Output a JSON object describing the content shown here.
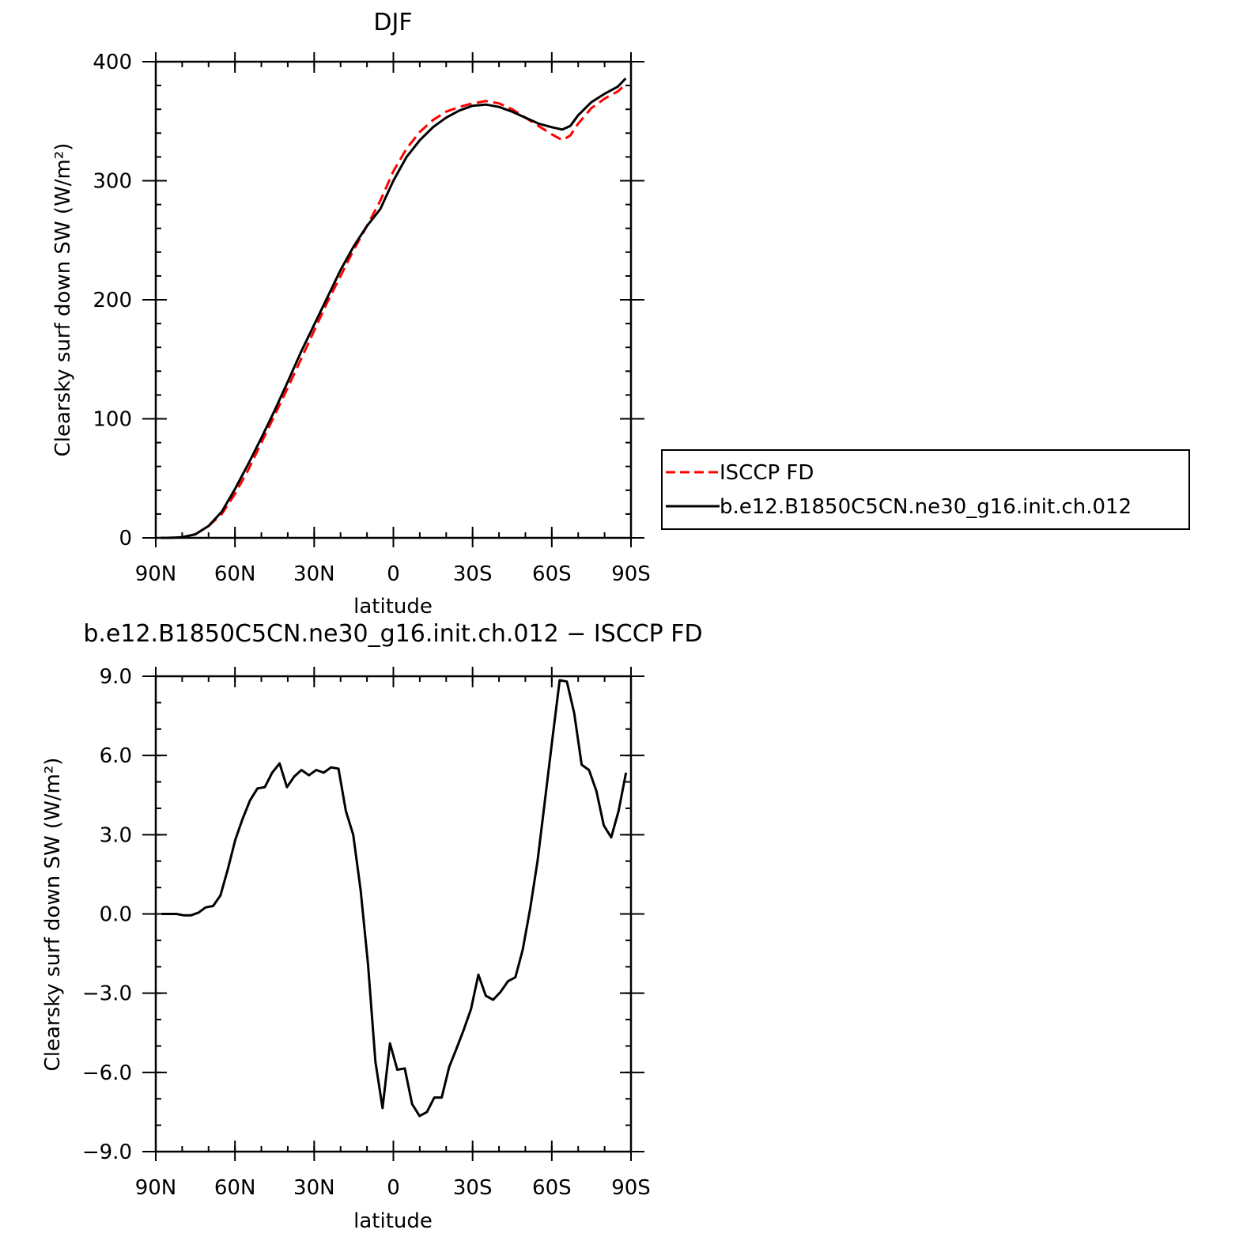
{
  "chart_data": [
    {
      "type": "line",
      "title": "DJF",
      "xlabel": "latitude",
      "ylabel": "Clearsky surf down SW (W/m²)",
      "xlim": [
        90,
        -90
      ],
      "ylim": [
        0,
        400
      ],
      "x_ticks": [
        90,
        60,
        30,
        0,
        -30,
        -60,
        -90
      ],
      "x_tick_labels": [
        "90N",
        "60N",
        "30N",
        "0",
        "30S",
        "60S",
        "90S"
      ],
      "y_ticks": [
        0,
        100,
        200,
        300,
        400
      ],
      "y_tick_labels": [
        "0",
        "100",
        "200",
        "300",
        "400"
      ],
      "legend_position": "right",
      "series": [
        {
          "name": "ISCCP FD",
          "color": "#ff0000",
          "dash": "dashed",
          "x": [
            88,
            85,
            80,
            75,
            70,
            65,
            60,
            55,
            50,
            45,
            40,
            35,
            30,
            25,
            20,
            15,
            10,
            5,
            0,
            -5,
            -10,
            -15,
            -20,
            -25,
            -30,
            -35,
            -40,
            -45,
            -50,
            -55,
            -60,
            -64,
            -67,
            -70,
            -75,
            -80,
            -85,
            -88
          ],
          "y": [
            0,
            0,
            0.5,
            3,
            10,
            20,
            37,
            57,
            80,
            103,
            126,
            150,
            174,
            198,
            220,
            242,
            262,
            283,
            308,
            327,
            341,
            351,
            358,
            362,
            365,
            367,
            365,
            360,
            353,
            346,
            339,
            334,
            338,
            348,
            361,
            369,
            375,
            381
          ]
        },
        {
          "name": "b.e12.B1850C5CN.ne30_g16.init.ch.012",
          "color": "#000000",
          "dash": "solid",
          "x": [
            88,
            85,
            80,
            75,
            70,
            65,
            60,
            55,
            50,
            45,
            40,
            35,
            30,
            25,
            20,
            15,
            10,
            5,
            0,
            -5,
            -10,
            -15,
            -20,
            -25,
            -30,
            -35,
            -40,
            -45,
            -50,
            -55,
            -60,
            -64,
            -67,
            -70,
            -75,
            -80,
            -85,
            -88
          ],
          "y": [
            0,
            0,
            0.5,
            3,
            10,
            22,
            41,
            62,
            84,
            107,
            131,
            156,
            179,
            202,
            225,
            245,
            262,
            276,
            300,
            320,
            334,
            345,
            353,
            359,
            363,
            364,
            362,
            358,
            353,
            348,
            345,
            343,
            346,
            355,
            366,
            373,
            379,
            386
          ]
        }
      ]
    },
    {
      "type": "line",
      "title": "b.e12.B1850C5CN.ne30_g16.init.ch.012 − ISCCP FD",
      "xlabel": "latitude",
      "ylabel": "Clearsky surf down SW (W/m²)",
      "xlim": [
        90,
        -90
      ],
      "ylim": [
        -9,
        9
      ],
      "x_ticks": [
        90,
        60,
        30,
        0,
        -30,
        -60,
        -90
      ],
      "x_tick_labels": [
        "90N",
        "60N",
        "30N",
        "0",
        "30S",
        "60S",
        "90S"
      ],
      "y_ticks": [
        9,
        6,
        3,
        0,
        -3,
        -6,
        -9
      ],
      "y_tick_labels": [
        "9.0",
        "6.0",
        "3.0",
        "0.0",
        "−3.0",
        "−6.0",
        "−9.0"
      ],
      "series": [
        {
          "color": "#000000",
          "dash": "solid",
          "x": [
            87.8,
            85.0,
            82.2,
            79.4,
            76.6,
            73.8,
            71.1,
            68.3,
            65.5,
            62.7,
            59.9,
            57.1,
            54.3,
            51.5,
            48.7,
            45.9,
            43.1,
            40.3,
            37.6,
            34.8,
            32.0,
            29.2,
            26.4,
            23.6,
            20.8,
            18.0,
            15.2,
            12.4,
            9.6,
            6.8,
            4.1,
            1.3,
            -1.5,
            -4.3,
            -7.1,
            -9.9,
            -12.7,
            -15.5,
            -18.3,
            -21.1,
            -23.9,
            -26.6,
            -29.4,
            -32.2,
            -35.0,
            -37.8,
            -40.6,
            -43.4,
            -46.2,
            -49.0,
            -51.8,
            -54.6,
            -57.4,
            -60.2,
            -63.0,
            -65.7,
            -68.5,
            -71.3,
            -74.1,
            -76.9,
            -79.7,
            -82.5,
            -85.3,
            -88.1
          ],
          "y": [
            0.0,
            0.0,
            0.0,
            -0.05,
            -0.05,
            0.05,
            0.25,
            0.3,
            0.7,
            1.7,
            2.8,
            3.6,
            4.3,
            4.75,
            4.8,
            5.35,
            5.7,
            4.8,
            5.2,
            5.45,
            5.25,
            5.45,
            5.35,
            5.55,
            5.5,
            3.9,
            3.0,
            0.9,
            -1.9,
            -5.6,
            -7.35,
            -4.9,
            -5.9,
            -5.85,
            -7.2,
            -7.65,
            -7.5,
            -6.95,
            -6.95,
            -5.8,
            -5.1,
            -4.4,
            -3.6,
            -2.3,
            -3.1,
            -3.25,
            -2.95,
            -2.55,
            -2.4,
            -1.35,
            0.2,
            2.0,
            4.3,
            6.6,
            8.85,
            8.8,
            7.6,
            5.65,
            5.45,
            4.65,
            3.35,
            2.9,
            3.9,
            5.35
          ]
        }
      ]
    }
  ]
}
